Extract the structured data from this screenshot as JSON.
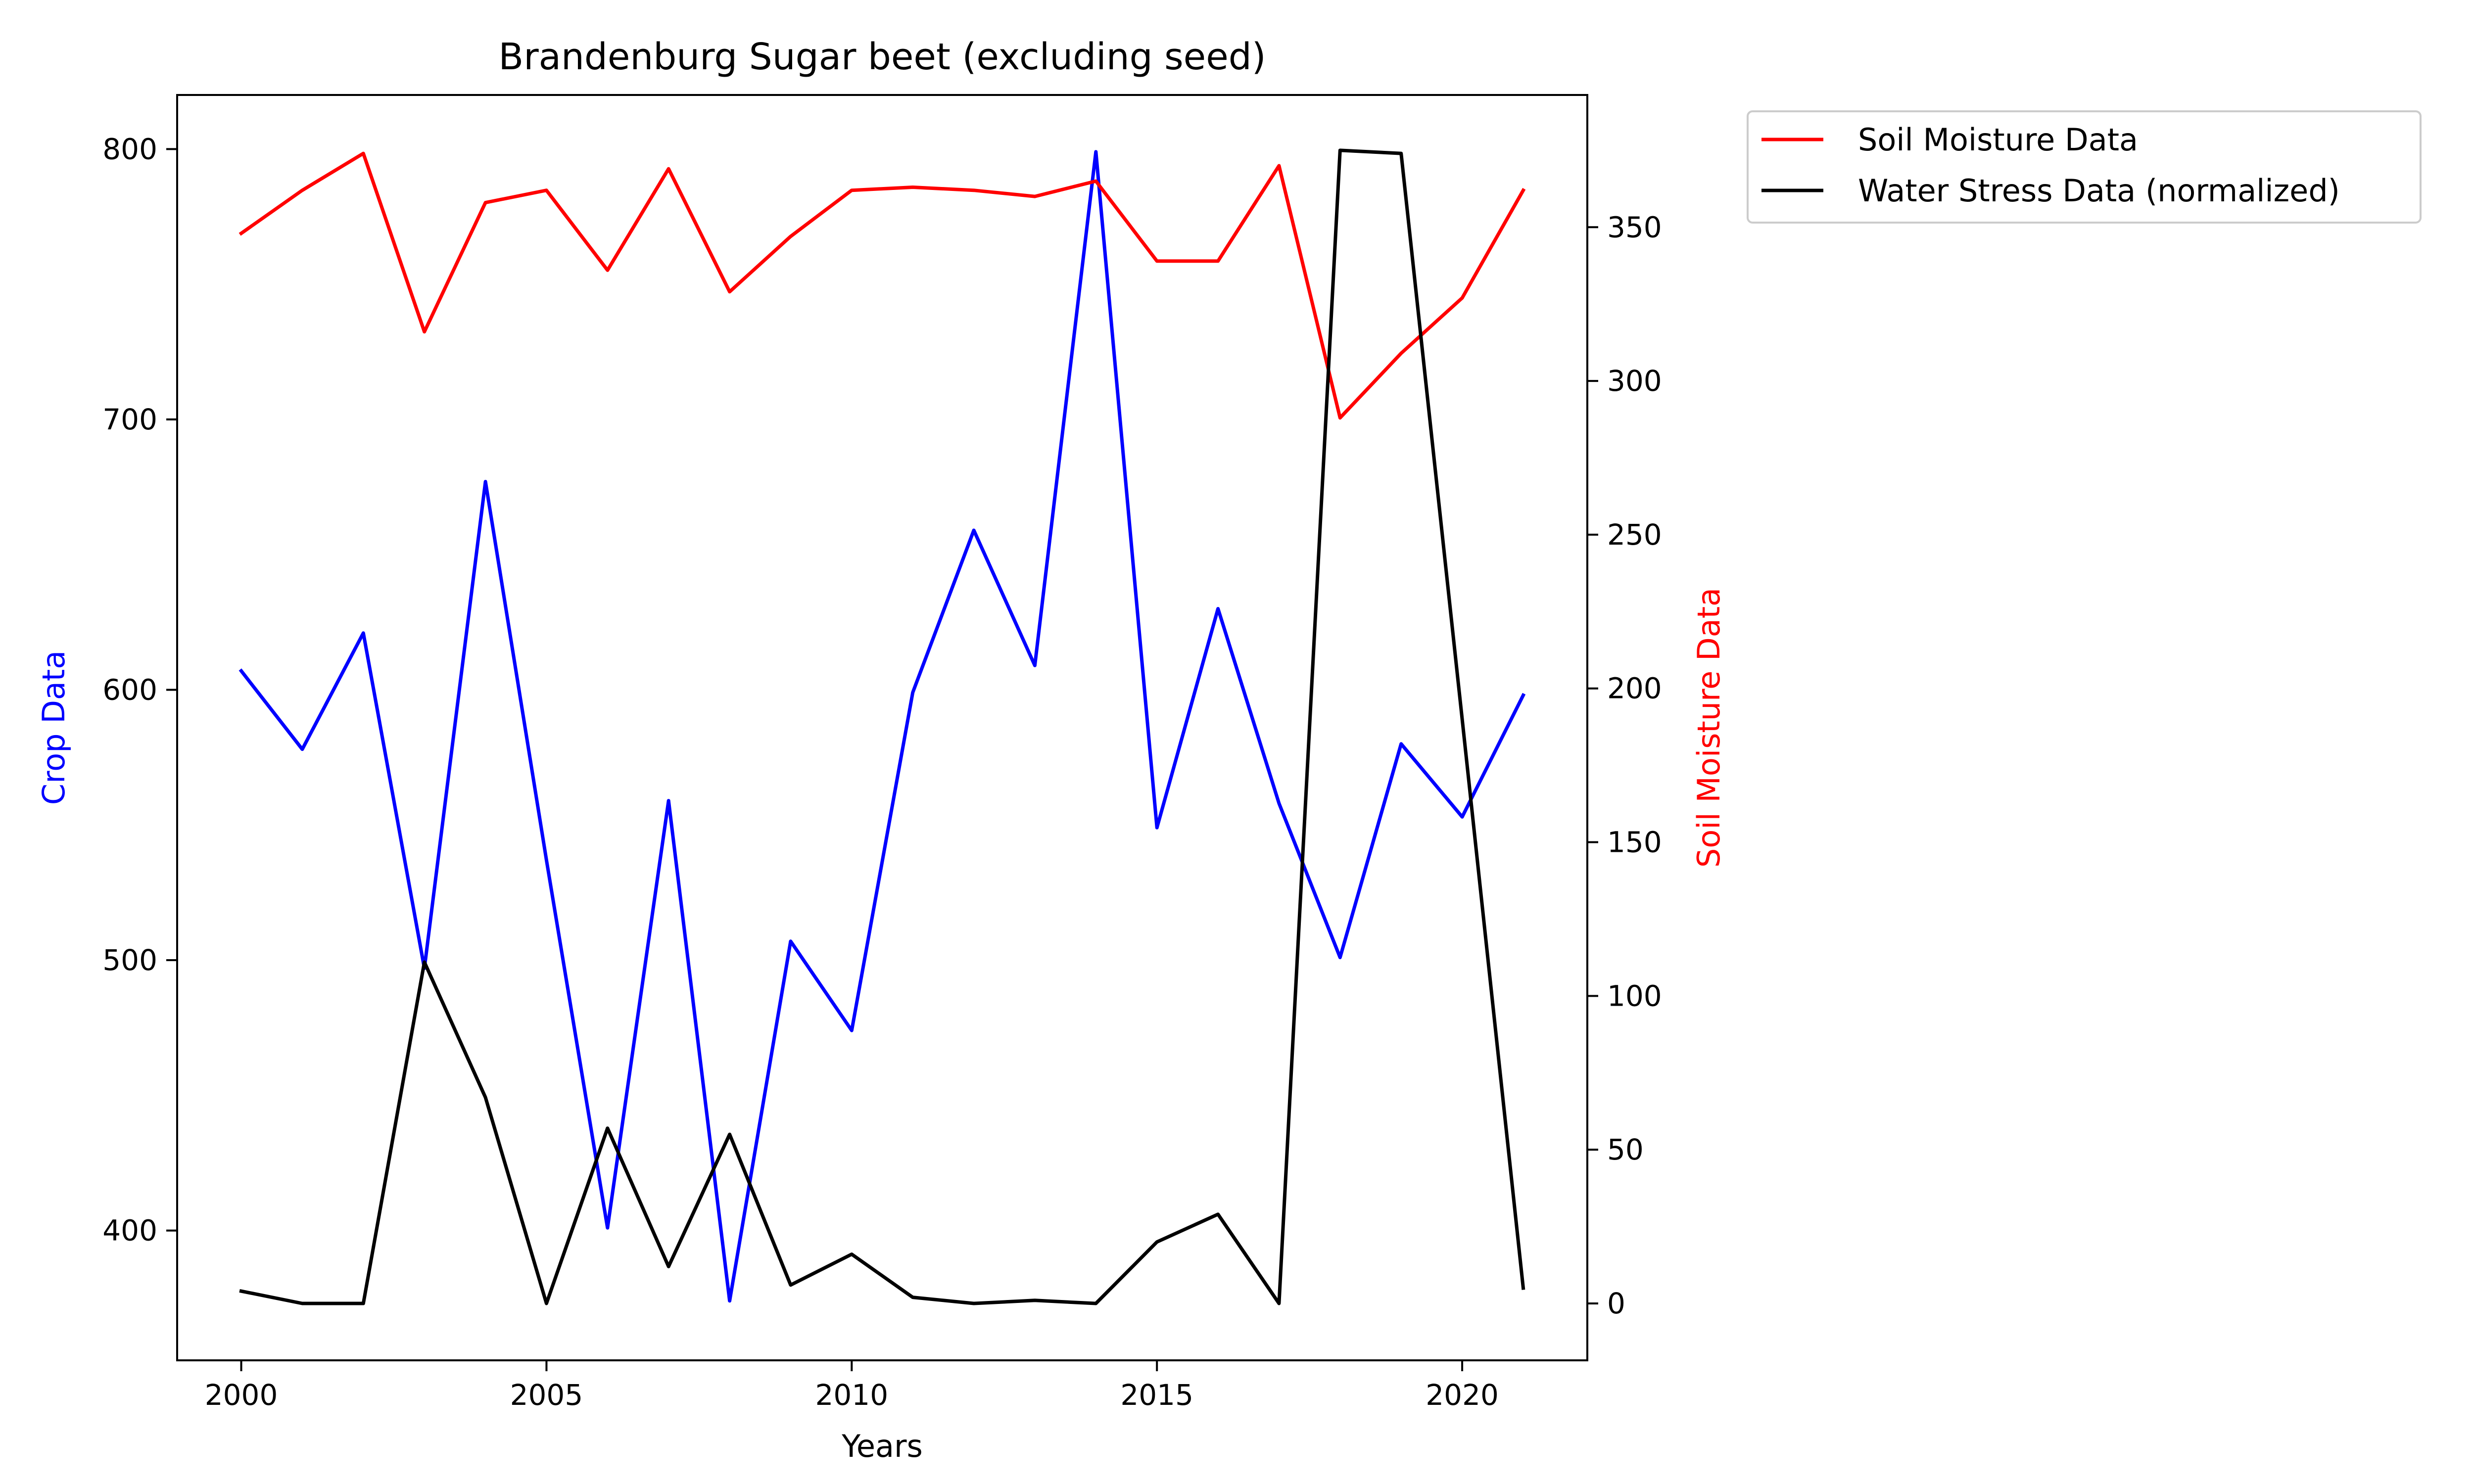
{
  "chart_data": {
    "type": "line",
    "title": "Brandenburg Sugar beet (excluding seed)",
    "xlabel": "Years",
    "ylabel_left": "Crop Data",
    "ylabel_right": "Soil Moisture Data",
    "x": [
      2000,
      2001,
      2002,
      2003,
      2004,
      2005,
      2006,
      2007,
      2008,
      2009,
      2010,
      2011,
      2012,
      2013,
      2014,
      2015,
      2016,
      2017,
      2018,
      2019,
      2020,
      2021
    ],
    "xlim": [
      1998.95,
      2022.05
    ],
    "xticks": [
      2000,
      2005,
      2010,
      2015,
      2020
    ],
    "ylim_left": [
      352,
      820
    ],
    "yticks_left": [
      400,
      500,
      600,
      700,
      800
    ],
    "ylim_right": [
      -18.5,
      393
    ],
    "yticks_right": [
      0,
      50,
      100,
      150,
      200,
      250,
      300,
      350
    ],
    "series": [
      {
        "name": "Crop Data",
        "axis": "left",
        "color": "#0000ff",
        "values": [
          607,
          578,
          621,
          497,
          677,
          537,
          401,
          559,
          374,
          507,
          474,
          599,
          659,
          609,
          799,
          549,
          630,
          558,
          501,
          580,
          553,
          598
        ]
      },
      {
        "name": "Soil Moisture Data",
        "axis": "right",
        "color": "#ff0000",
        "values": [
          348,
          362,
          374,
          316,
          358,
          362,
          336,
          369,
          329,
          347,
          362,
          363,
          362,
          360,
          365,
          339,
          339,
          370,
          288,
          309,
          327,
          362
        ]
      },
      {
        "name": "Water Stress Data (normalized)",
        "axis": "right",
        "color": "#000000",
        "values": [
          4,
          0,
          0,
          111,
          67,
          0,
          57,
          12,
          55,
          6,
          16,
          2,
          0,
          1,
          0,
          20,
          29,
          0,
          375,
          374,
          190,
          5
        ]
      }
    ],
    "legend": {
      "position": "outside-top-right",
      "entries": [
        "Soil Moisture Data",
        "Water Stress Data (normalized)"
      ]
    },
    "grid": false
  }
}
